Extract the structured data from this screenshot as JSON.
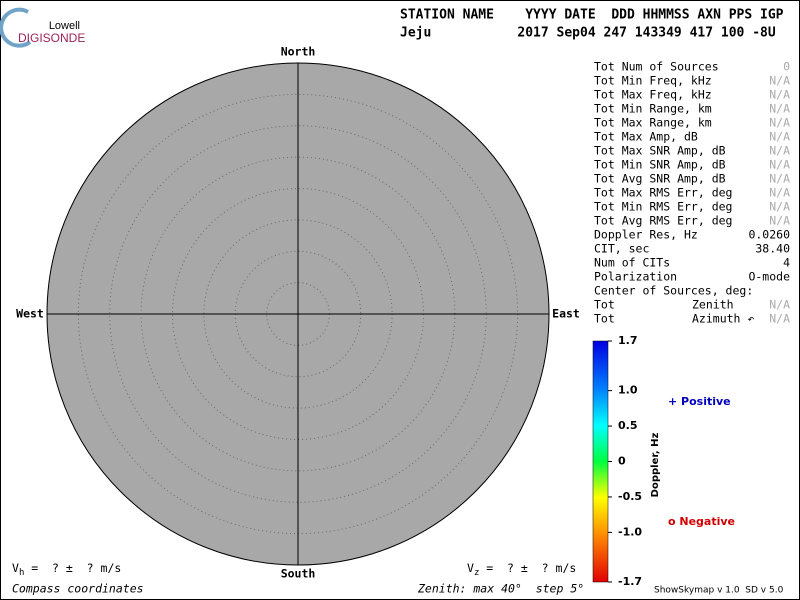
{
  "header": {
    "logo": {
      "top": "Lowell",
      "bottom": "DIGISONDE"
    },
    "labels": "STATION NAME    YYYY DATE  DDD HHMMSS AXN PPS IGP",
    "values": "Jeju           2017 Sep04 247 143349 417 100 -8U"
  },
  "plot": {
    "north": "North",
    "south": "South",
    "west": "West",
    "east": "East"
  },
  "table": {
    "rows": [
      {
        "label": "Tot Num of Sources",
        "value": "0",
        "muted": true
      },
      {
        "label": "Tot Min Freq, kHz",
        "value": "N/A",
        "muted": true
      },
      {
        "label": "Tot Max Freq, kHz",
        "value": "N/A",
        "muted": true
      },
      {
        "label": "Tot Min Range, km",
        "value": "N/A",
        "muted": true
      },
      {
        "label": "Tot Max Range, km",
        "value": "N/A",
        "muted": true
      },
      {
        "label": "Tot Max Amp, dB",
        "value": "N/A",
        "muted": true
      },
      {
        "label": "Tot Max SNR Amp, dB",
        "value": "N/A",
        "muted": true
      },
      {
        "label": "Tot Min SNR Amp, dB",
        "value": "N/A",
        "muted": true
      },
      {
        "label": "Tot Avg SNR Amp, dB",
        "value": "N/A",
        "muted": true
      },
      {
        "label": "Tot Max RMS Err, deg",
        "value": "N/A",
        "muted": true
      },
      {
        "label": "Tot Min RMS Err, deg",
        "value": "N/A",
        "muted": true
      },
      {
        "label": "Tot Avg RMS Err, deg",
        "value": "N/A",
        "muted": true
      },
      {
        "label": "Doppler Res, Hz",
        "value": "0.0260",
        "muted": false
      },
      {
        "label": "CIT, sec",
        "value": "38.40",
        "muted": false
      },
      {
        "label": "Num of CITs",
        "value": "4",
        "muted": false
      },
      {
        "label": "Polarization",
        "value": "O-mode",
        "muted": false
      },
      {
        "label": "Center of Sources, deg:"
      },
      {
        "label": "Tot",
        "field": "Zenith",
        "value": "N/A",
        "muted": true
      },
      {
        "label": "Tot",
        "field": "Azimuth ↶",
        "value": "N/A",
        "muted": true
      }
    ]
  },
  "colorbar": {
    "title": "Doppler, Hz",
    "ticks": [
      1.7,
      {
        "value": 1,
        "label": "1.0"
      },
      0.5,
      0,
      -0.5,
      {
        "value": -1,
        "label": "-1.0"
      },
      -1.7
    ],
    "positive": "+ Positive",
    "negative": "o Negative"
  },
  "footer": {
    "vh": {
      "symbol": "V",
      "sub": "h",
      "text": " =  ? ±  ? m/s"
    },
    "vz": {
      "symbol": "V",
      "sub": "z",
      "text": " =  ? ±  ? m/s"
    },
    "coords": "Compass coordinates",
    "zenith": "Zenith: max 40°  step 5°",
    "version": "ShowSkymap v 1.0  SD v 5.0"
  }
}
